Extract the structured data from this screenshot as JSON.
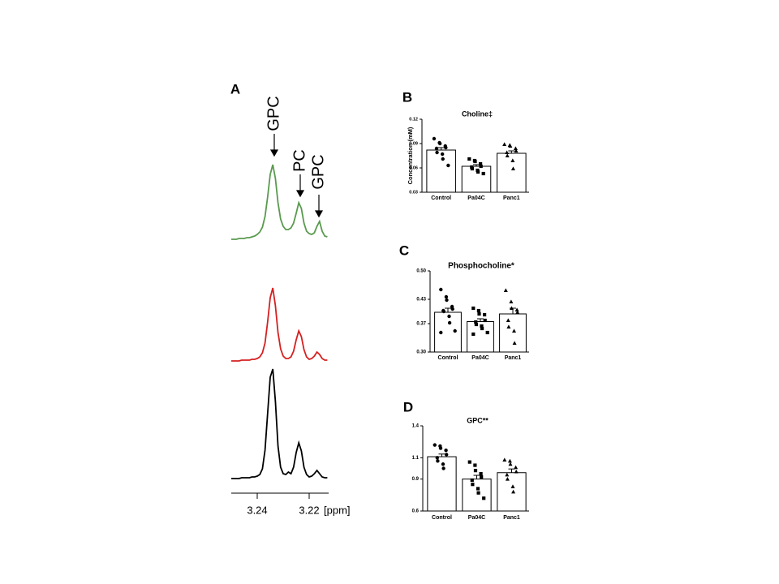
{
  "chart_data": [
    {
      "type": "line",
      "label": "A",
      "xlabel": "[ppm]",
      "x": [
        3.25,
        3.249,
        3.248,
        3.247,
        3.246,
        3.245,
        3.244,
        3.243,
        3.242,
        3.241,
        3.24,
        3.239,
        3.238,
        3.237,
        3.236,
        3.235,
        3.234,
        3.233,
        3.232,
        3.231,
        3.23,
        3.229,
        3.228,
        3.227,
        3.226,
        3.225,
        3.224,
        3.223,
        3.222,
        3.221,
        3.22,
        3.219,
        3.218,
        3.217,
        3.216,
        3.215,
        3.214,
        3.213
      ],
      "xlim": [
        3.25,
        3.2125
      ],
      "xticks": [
        3.24,
        3.22
      ],
      "series": [
        {
          "color": "#5a9a4f",
          "values": [
            0,
            0,
            0,
            1,
            1,
            1,
            2,
            2,
            3,
            4,
            6,
            9,
            15,
            28,
            52,
            80,
            92,
            75,
            45,
            25,
            16,
            12,
            12,
            14,
            20,
            32,
            45,
            38,
            20,
            10,
            7,
            6,
            8,
            16,
            22,
            10,
            4,
            3
          ]
        },
        {
          "color": "#d62020",
          "values": [
            0,
            0,
            0,
            0,
            1,
            1,
            1,
            1,
            2,
            2,
            3,
            5,
            10,
            22,
            48,
            78,
            90,
            68,
            35,
            15,
            6,
            3,
            3,
            5,
            12,
            26,
            37,
            30,
            14,
            5,
            2,
            3,
            6,
            11,
            8,
            3,
            1,
            1
          ]
        },
        {
          "color": "#000000",
          "values": [
            0,
            0,
            0,
            0,
            1,
            1,
            1,
            1,
            2,
            2,
            3,
            5,
            12,
            35,
            80,
            125,
            135,
            95,
            40,
            14,
            6,
            5,
            8,
            6,
            14,
            32,
            44,
            34,
            14,
            5,
            2,
            3,
            6,
            10,
            6,
            2,
            1,
            1
          ]
        }
      ],
      "annotations": [
        "GPC",
        "PC",
        "GPC"
      ]
    },
    {
      "type": "bar",
      "label": "B",
      "title": "Choline‡",
      "ylabel": "Concentration (mM)",
      "categories": [
        "Control",
        "Pa04C",
        "Panc1"
      ],
      "values": [
        0.082,
        0.062,
        0.078
      ],
      "errors": [
        0.003,
        0.002,
        0.003
      ],
      "points": [
        [
          0.096,
          0.091,
          0.09,
          0.087,
          0.085,
          0.084,
          0.079,
          0.077,
          0.071,
          0.063
        ],
        [
          0.071,
          0.069,
          0.068,
          0.065,
          0.062,
          0.061,
          0.059,
          0.057,
          0.055,
          0.053
        ],
        [
          0.089,
          0.088,
          0.087,
          0.084,
          0.081,
          0.079,
          0.075,
          0.069,
          0.059
        ]
      ],
      "markers": [
        "circle",
        "square",
        "triangle"
      ],
      "color": "#ffffff",
      "ylim": [
        0.03,
        0.12
      ],
      "yticks": [
        0.03,
        0.06,
        0.09,
        0.12
      ]
    },
    {
      "type": "bar",
      "label": "C",
      "title": "Phosphocholine*",
      "categories": [
        "Control",
        "Pa04C",
        "Panc1"
      ],
      "values": [
        0.398,
        0.375,
        0.394
      ],
      "errors": [
        0.01,
        0.007,
        0.014
      ],
      "points": [
        [
          0.454,
          0.436,
          0.428,
          0.412,
          0.406,
          0.402,
          0.4,
          0.388,
          0.372,
          0.352,
          0.348
        ],
        [
          0.408,
          0.402,
          0.394,
          0.392,
          0.378,
          0.374,
          0.368,
          0.364,
          0.358,
          0.348,
          0.344
        ],
        [
          0.452,
          0.424,
          0.408,
          0.404,
          0.398,
          0.378,
          0.362,
          0.352,
          0.322
        ]
      ],
      "markers": [
        "circle",
        "square",
        "triangle"
      ],
      "color": "#ffffff",
      "ylim": [
        0.3,
        0.5
      ],
      "yticks": [
        {
          "value": 0.3,
          "label": "0.30"
        },
        0.37,
        0.43,
        {
          "value": 0.5,
          "label": "0.50"
        }
      ]
    },
    {
      "type": "bar",
      "label": "D",
      "title": "GPC**",
      "categories": [
        "Control",
        "Pa04C",
        "Panc1"
      ],
      "values": [
        1.11,
        0.9,
        0.96
      ],
      "errors": [
        0.025,
        0.035,
        0.035
      ],
      "points": [
        [
          1.22,
          1.21,
          1.19,
          1.17,
          1.13,
          1.1,
          1.07,
          1.04,
          1.0
        ],
        [
          1.06,
          1.03,
          0.98,
          0.95,
          0.92,
          0.89,
          0.85,
          0.81,
          0.77,
          0.72
        ],
        [
          1.08,
          1.07,
          1.04,
          1.01,
          0.97,
          0.94,
          0.9,
          0.83,
          0.78
        ]
      ],
      "markers": [
        "circle",
        "square",
        "triangle"
      ],
      "color": "#ffffff",
      "ylim": [
        0.6,
        1.4
      ],
      "yticks": [
        0.6,
        0.9,
        1.1,
        1.4
      ]
    }
  ]
}
